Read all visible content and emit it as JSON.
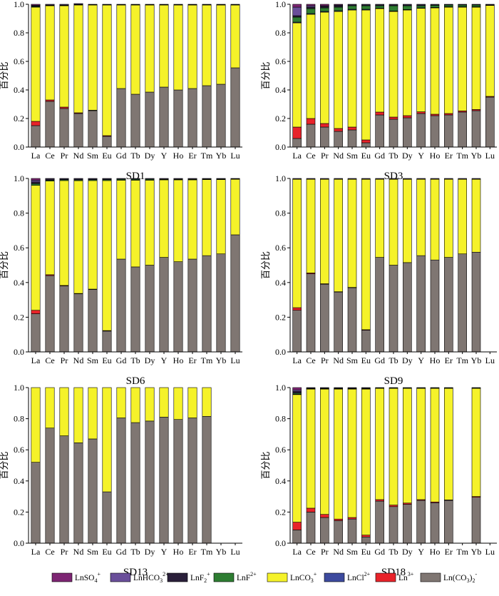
{
  "chart_data": {
    "type": "bar",
    "stacked": true,
    "categories": [
      "La",
      "Ce",
      "Pr",
      "Nd",
      "Sm",
      "Eu",
      "Gd",
      "Tb",
      "Dy",
      "Y",
      "Ho",
      "Er",
      "Tm",
      "Yb",
      "Lu"
    ],
    "ylim": [
      0,
      1.0
    ],
    "yticks": [
      "0.0",
      "0.2",
      "0.4",
      "0.6",
      "0.8",
      "1.0"
    ],
    "ylabel": "百分比",
    "legend_position": "bottom",
    "series": [
      {
        "key": "c0",
        "name": "Ln(CO3)2-",
        "label": "Ln(CO",
        "sub": "3",
        "mid": ")",
        "sub2": "2",
        "sup": "-",
        "color": "#7f7672"
      },
      {
        "key": "ln3",
        "name": "Ln3+",
        "label": "Ln",
        "sup": "3+",
        "color": "#e8232a"
      },
      {
        "key": "co3",
        "name": "LnCO3+",
        "label": "LnCO",
        "sub": "3",
        "sup": "+",
        "color": "#f5f22a"
      },
      {
        "key": "cl",
        "name": "LnCl2+",
        "label": "LnCl",
        "sup": "2+",
        "color": "#3d4a9e"
      },
      {
        "key": "f",
        "name": "LnF2+",
        "label": "LnF",
        "sup": "2+",
        "color": "#2e7d32"
      },
      {
        "key": "f2",
        "name": "LnF2+ (difluoro)",
        "label": "LnF",
        "sub": "2",
        "sup": "+",
        "color": "#2a1f3a"
      },
      {
        "key": "hco3",
        "name": "LnHCO32+",
        "label": "LnHCO",
        "sub": "3",
        "sup": "2+",
        "color": "#6a4f9a"
      },
      {
        "key": "so4",
        "name": "LnSO4+",
        "label": "LnSO",
        "sub": "4",
        "sup": "+",
        "color": "#7d2573"
      }
    ],
    "legend_order": [
      "so4",
      "hco3",
      "f2",
      "f",
      "co3",
      "cl",
      "ln3",
      "c0"
    ],
    "panels": [
      {
        "title": "SD1",
        "stacks": {
          "c0": [
            0.15,
            0.32,
            0.27,
            0.235,
            0.255,
            0.075,
            0.41,
            0.37,
            0.385,
            0.42,
            0.4,
            0.41,
            0.43,
            0.44,
            0.555
          ],
          "ln3": [
            0.03,
            0.01,
            0.01,
            0.005,
            0.003,
            0.005,
            0,
            0,
            0,
            0,
            0,
            0,
            0,
            0,
            0
          ],
          "co3": [
            0.8,
            0.66,
            0.71,
            0.755,
            0.737,
            0.915,
            0.585,
            0.625,
            0.61,
            0.575,
            0.595,
            0.585,
            0.565,
            0.555,
            0.44
          ],
          "cl": [
            0,
            0,
            0,
            0,
            0,
            0,
            0,
            0,
            0,
            0,
            0,
            0,
            0,
            0,
            0
          ],
          "f": [
            0.005,
            0.003,
            0.003,
            0.003,
            0.003,
            0.003,
            0.003,
            0.003,
            0.003,
            0.003,
            0.003,
            0.003,
            0.003,
            0.003,
            0.003
          ],
          "f2": [
            0.003,
            0.002,
            0.002,
            0.002,
            0.002,
            0.002,
            0.002,
            0.002,
            0.002,
            0.002,
            0.002,
            0.002,
            0.002,
            0.002,
            0.002
          ],
          "hco3": [
            0.005,
            0.005,
            0.005,
            0.005,
            0,
            0,
            0,
            0,
            0,
            0,
            0,
            0,
            0,
            0,
            0
          ],
          "so4": [
            0.007,
            0,
            0,
            0,
            0,
            0,
            0,
            0,
            0,
            0,
            0,
            0,
            0,
            0,
            0
          ]
        }
      },
      {
        "title": "SD3",
        "stacks": {
          "c0": [
            0.06,
            0.16,
            0.14,
            0.11,
            0.12,
            0.03,
            0.225,
            0.195,
            0.205,
            0.235,
            0.22,
            0.225,
            0.245,
            0.255,
            0.35
          ],
          "ln3": [
            0.08,
            0.04,
            0.025,
            0.02,
            0.02,
            0.02,
            0.02,
            0.015,
            0.015,
            0.012,
            0.01,
            0.01,
            0.008,
            0.008,
            0.005
          ],
          "co3": [
            0.73,
            0.73,
            0.78,
            0.82,
            0.82,
            0.91,
            0.725,
            0.74,
            0.74,
            0.725,
            0.745,
            0.745,
            0.727,
            0.717,
            0.637
          ],
          "cl": [
            0.005,
            0.005,
            0.005,
            0.005,
            0.005,
            0.005,
            0.003,
            0.003,
            0.003,
            0.003,
            0.003,
            0.003,
            0.003,
            0.003,
            0.003
          ],
          "f": [
            0.035,
            0.035,
            0.025,
            0.025,
            0.025,
            0.025,
            0.017,
            0.037,
            0.027,
            0.015,
            0.015,
            0.012,
            0.012,
            0.012,
            0.0
          ],
          "f2": [
            0.01,
            0.01,
            0.01,
            0.01,
            0.01,
            0.01,
            0.01,
            0.01,
            0.01,
            0.01,
            0.007,
            0.005,
            0.005,
            0.005,
            0.005
          ],
          "hco3": [
            0.06,
            0.01,
            0.005,
            0.005,
            0,
            0,
            0,
            0,
            0,
            0,
            0,
            0,
            0,
            0,
            0
          ],
          "so4": [
            0.02,
            0.01,
            0.01,
            0.005,
            0,
            0,
            0,
            0,
            0,
            0,
            0,
            0,
            0,
            0,
            0
          ]
        }
      },
      {
        "title": "SD6",
        "stacks": {
          "c0": [
            0.22,
            0.44,
            0.38,
            0.335,
            0.36,
            0.12,
            0.535,
            0.49,
            0.5,
            0.545,
            0.52,
            0.535,
            0.555,
            0.565,
            0.675
          ],
          "ln3": [
            0.02,
            0.005,
            0.003,
            0.002,
            0.002,
            0.003,
            0,
            0,
            0,
            0,
            0,
            0,
            0,
            0,
            0
          ],
          "co3": [
            0.72,
            0.54,
            0.605,
            0.65,
            0.626,
            0.865,
            0.455,
            0.5,
            0.49,
            0.447,
            0.472,
            0.457,
            0.438,
            0.428,
            0.32
          ],
          "cl": [
            0,
            0,
            0,
            0,
            0,
            0,
            0,
            0,
            0,
            0,
            0,
            0,
            0,
            0,
            0
          ],
          "f": [
            0.01,
            0.005,
            0.005,
            0.005,
            0.005,
            0.005,
            0.005,
            0.005,
            0.005,
            0.003,
            0.003,
            0.003,
            0.003,
            0.003,
            0.002
          ],
          "f2": [
            0.01,
            0.01,
            0.007,
            0.008,
            0.007,
            0.007,
            0.005,
            0.005,
            0.005,
            0.005,
            0.005,
            0.005,
            0.004,
            0.004,
            0.003
          ],
          "hco3": [
            0.01,
            0,
            0,
            0,
            0,
            0,
            0,
            0,
            0,
            0,
            0,
            0,
            0,
            0,
            0
          ],
          "so4": [
            0.01,
            0,
            0,
            0,
            0,
            0,
            0,
            0,
            0,
            0,
            0,
            0,
            0,
            0,
            0
          ]
        }
      },
      {
        "title": "SD9",
        "stacks": {
          "c0": [
            0.24,
            0.45,
            0.39,
            0.345,
            0.37,
            0.125,
            0.545,
            0.5,
            0.515,
            0.555,
            0.53,
            0.545,
            0.565,
            0.575,
            0
          ],
          "ln3": [
            0.015,
            0.005,
            0.003,
            0.002,
            0.002,
            0.003,
            0,
            0,
            0,
            0,
            0,
            0,
            0,
            0,
            0
          ],
          "co3": [
            0.74,
            0.54,
            0.602,
            0.648,
            0.623,
            0.867,
            0.45,
            0.495,
            0.48,
            0.44,
            0.465,
            0.45,
            0.43,
            0.42,
            0
          ],
          "cl": [
            0,
            0,
            0,
            0,
            0,
            0,
            0,
            0,
            0,
            0,
            0,
            0,
            0,
            0,
            0
          ],
          "f": [
            0.0,
            0.0,
            0.0,
            0.0,
            0.0,
            0.0,
            0.0,
            0.0,
            0.0,
            0.0,
            0.0,
            0.0,
            0.0,
            0.0,
            0
          ],
          "f2": [
            0.005,
            0.005,
            0.005,
            0.005,
            0.005,
            0.005,
            0.005,
            0.005,
            0.005,
            0.005,
            0.005,
            0.005,
            0.005,
            0.005,
            0
          ],
          "hco3": [
            0,
            0,
            0,
            0,
            0,
            0,
            0,
            0,
            0,
            0,
            0,
            0,
            0,
            0,
            0
          ],
          "so4": [
            0,
            0,
            0,
            0,
            0,
            0,
            0,
            0,
            0,
            0,
            0,
            0,
            0,
            0,
            0
          ]
        }
      },
      {
        "title": "SD13",
        "stacks": {
          "c0": [
            0.52,
            0.74,
            0.69,
            0.645,
            0.67,
            0.33,
            0.805,
            0.775,
            0.785,
            0.81,
            0.795,
            0.805,
            0.815,
            0,
            0
          ],
          "ln3": [
            0,
            0,
            0,
            0,
            0,
            0,
            0,
            0,
            0,
            0,
            0,
            0,
            0,
            0,
            0
          ],
          "co3": [
            0.48,
            0.26,
            0.31,
            0.355,
            0.33,
            0.67,
            0.195,
            0.225,
            0.215,
            0.19,
            0.205,
            0.195,
            0.185,
            0,
            0
          ],
          "cl": [
            0,
            0,
            0,
            0,
            0,
            0,
            0,
            0,
            0,
            0,
            0,
            0,
            0,
            0,
            0
          ],
          "f": [
            0,
            0,
            0,
            0,
            0,
            0,
            0,
            0,
            0,
            0,
            0,
            0,
            0,
            0,
            0
          ],
          "f2": [
            0,
            0,
            0,
            0,
            0,
            0,
            0,
            0,
            0,
            0,
            0,
            0,
            0,
            0,
            0
          ],
          "hco3": [
            0,
            0,
            0,
            0,
            0,
            0,
            0,
            0,
            0,
            0,
            0,
            0,
            0,
            0,
            0
          ],
          "so4": [
            0,
            0,
            0,
            0,
            0,
            0,
            0,
            0,
            0,
            0,
            0,
            0,
            0,
            0,
            0
          ]
        }
      },
      {
        "title": "SD18",
        "stacks": {
          "c0": [
            0.085,
            0.2,
            0.165,
            0.145,
            0.155,
            0.04,
            0.27,
            0.235,
            0.25,
            0.275,
            0.26,
            0.275,
            0,
            0.295,
            0
          ],
          "ln3": [
            0.05,
            0.025,
            0.02,
            0.01,
            0.01,
            0.012,
            0.01,
            0.01,
            0.008,
            0.005,
            0.005,
            0.003,
            0,
            0.005,
            0
          ],
          "co3": [
            0.82,
            0.765,
            0.805,
            0.835,
            0.825,
            0.938,
            0.715,
            0.75,
            0.737,
            0.715,
            0.73,
            0.717,
            0,
            0.695,
            0
          ],
          "cl": [
            0.003,
            0.002,
            0.002,
            0.002,
            0.002,
            0.002,
            0.002,
            0.002,
            0.002,
            0.002,
            0.002,
            0.002,
            0,
            0.002,
            0
          ],
          "f": [
            0.007,
            0.003,
            0.003,
            0.003,
            0.003,
            0.003,
            0.003,
            0.003,
            0.003,
            0.003,
            0.003,
            0.003,
            0,
            0.003,
            0
          ],
          "f2": [
            0.01,
            0.005,
            0.005,
            0.005,
            0.005,
            0.005,
            0.0,
            0.0,
            0.0,
            0.0,
            0.0,
            0.0,
            0,
            0.0,
            0
          ],
          "hco3": [
            0.01,
            0,
            0,
            0,
            0,
            0,
            0,
            0,
            0,
            0,
            0,
            0,
            0,
            0,
            0
          ],
          "so4": [
            0.015,
            0,
            0,
            0,
            0,
            0,
            0,
            0,
            0,
            0,
            0,
            0,
            0,
            0,
            0
          ]
        }
      }
    ]
  }
}
